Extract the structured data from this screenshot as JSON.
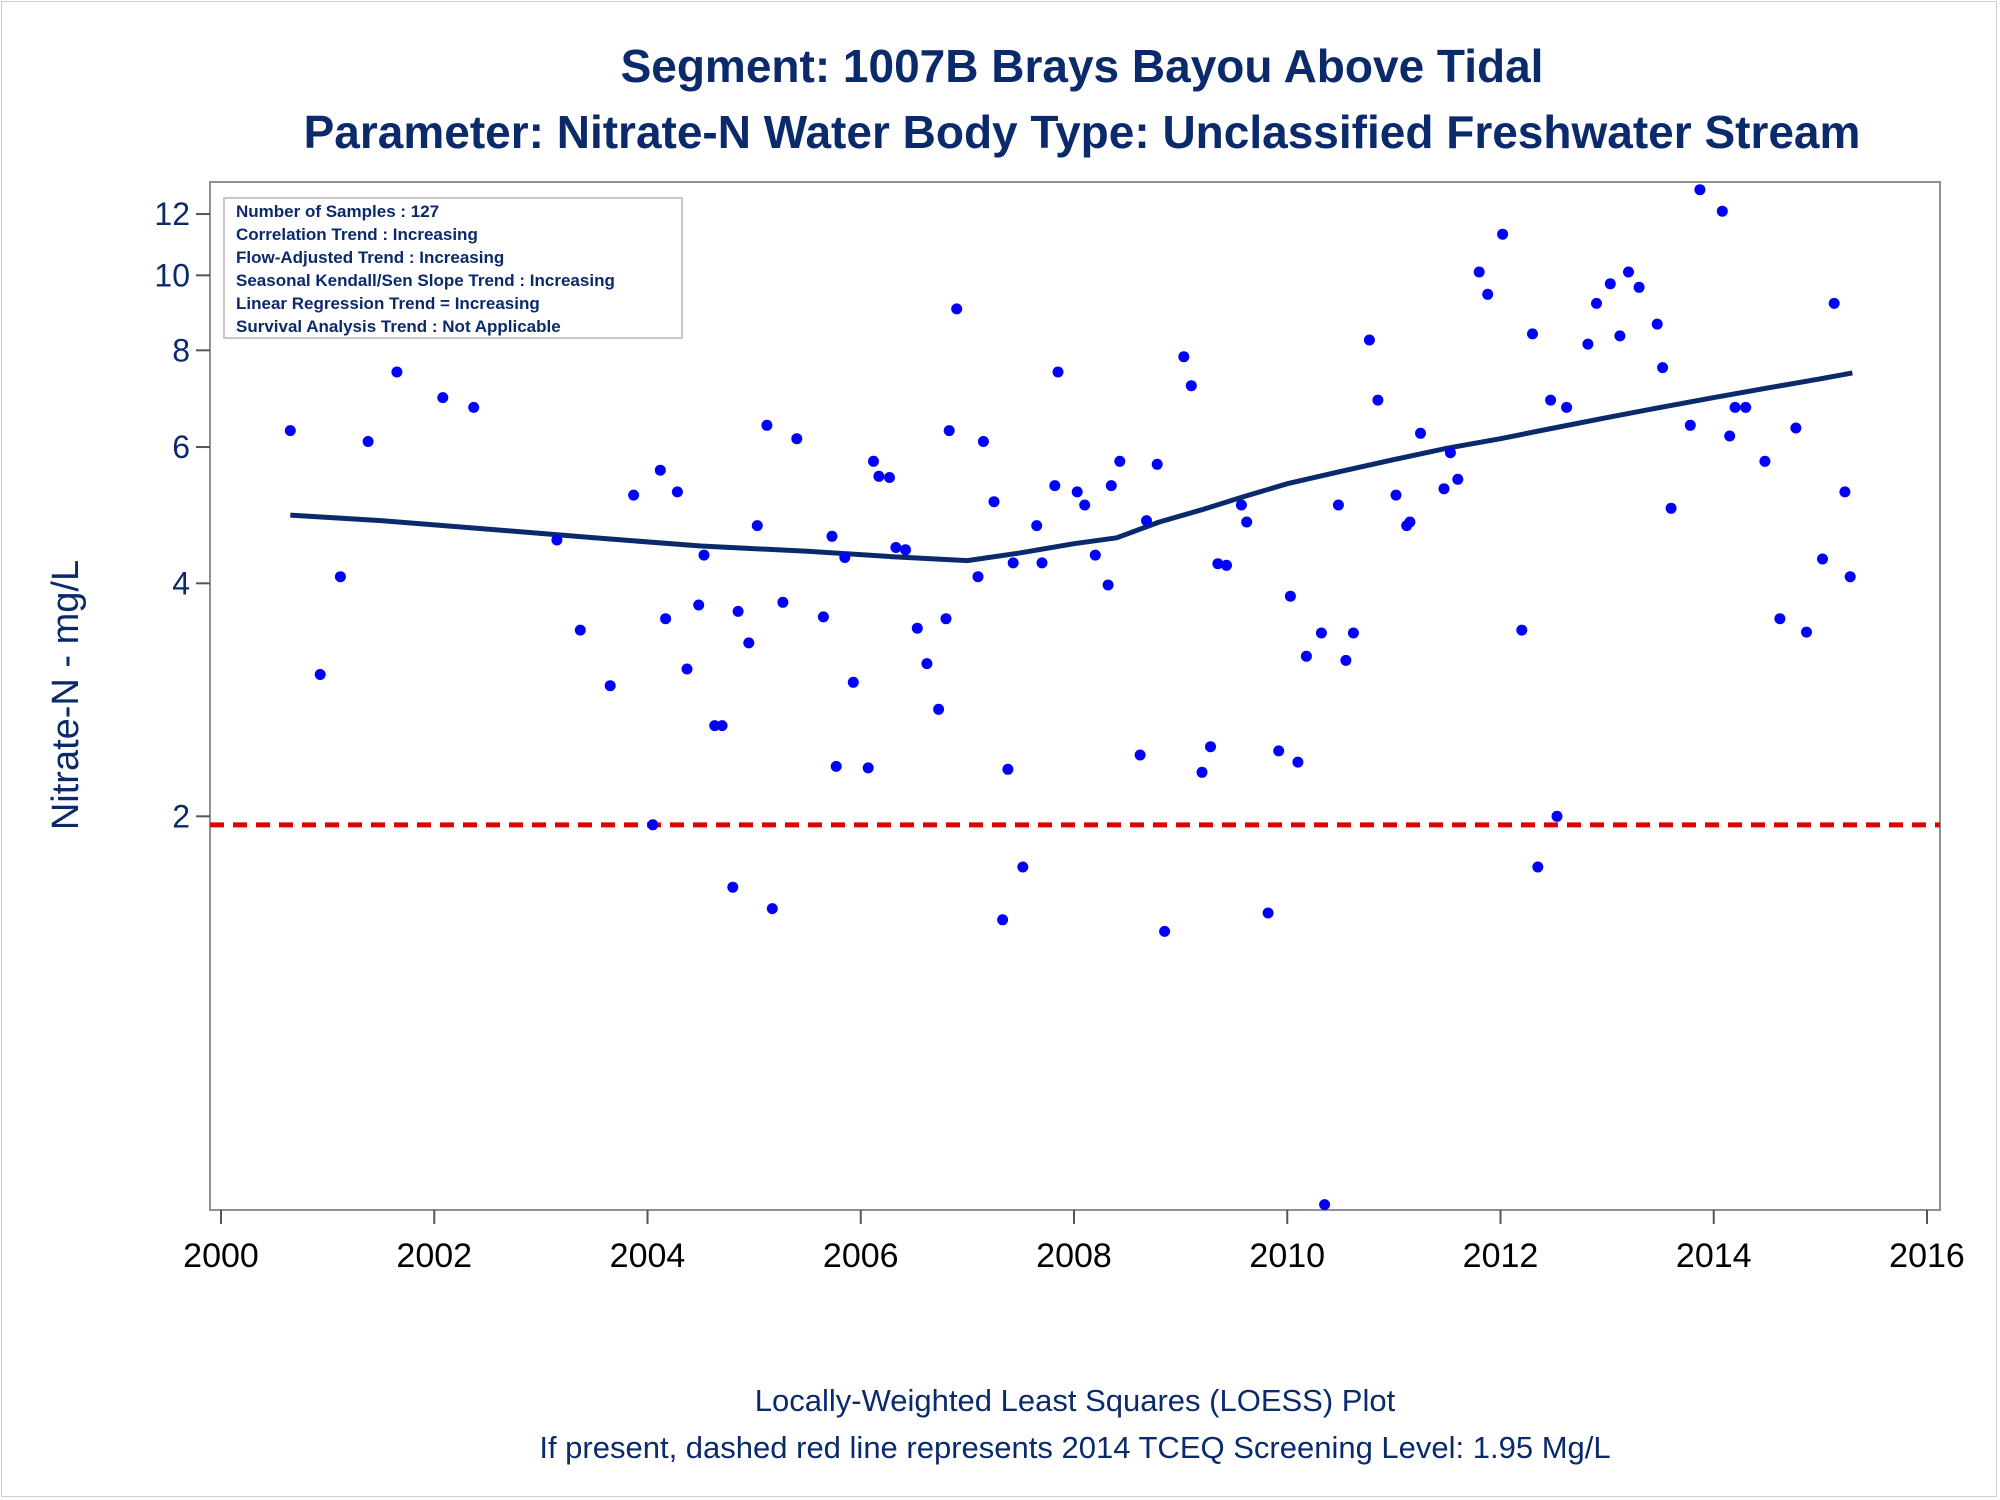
{
  "chart_data": {
    "type": "scatter",
    "title": "Segment: 1007B  Brays Bayou Above Tidal",
    "subtitle": "Parameter: Nitrate-N   Water Body Type: Unclassified Freshwater Stream",
    "xlabel": "",
    "ylabel": "Nitrate-N - mg/L",
    "yscale": "log",
    "xlim": [
      2000,
      2016
    ],
    "ylim": [
      0.62,
      13.2
    ],
    "xticks": [
      2000,
      2002,
      2004,
      2006,
      2008,
      2010,
      2012,
      2014,
      2016
    ],
    "yticks": [
      2,
      4,
      6,
      8,
      10,
      12
    ],
    "grid": false,
    "footnote1": "Locally-Weighted Least Squares (LOESS) Plot",
    "footnote2": "If present, dashed red line represents 2014 TCEQ Screening Level: 1.95 Mg/L",
    "stats_box": [
      "Number of Samples : 127",
      "Correlation Trend : Increasing",
      "Flow-Adjusted Trend : Increasing",
      "Seasonal Kendall/Sen Slope Trend : Increasing",
      "Linear Regression Trend = Increasing",
      "Survival Analysis Trend : Not Applicable"
    ],
    "screening_level": 1.95,
    "colors": {
      "points": "#0000ff",
      "loess": "#0b2a6b",
      "screening": "#e00000",
      "text": "#0b2a6b",
      "frame": "#909090"
    },
    "series": [
      {
        "kind": "points",
        "x": [
          2000.65,
          2000.93,
          2001.12,
          2001.38,
          2001.65,
          2001.85,
          2002.08,
          2002.37,
          2002.87,
          2003.15,
          2003.37,
          2003.65,
          2003.87,
          2004.05,
          2004.12,
          2004.17,
          2004.28,
          2004.37,
          2004.48,
          2004.53,
          2004.63,
          2004.7,
          2004.8,
          2004.85,
          2004.95,
          2005.03,
          2005.12,
          2005.17,
          2005.27,
          2005.4,
          2005.65,
          2005.73,
          2005.77,
          2005.85,
          2005.93,
          2006.07,
          2006.12,
          2006.17,
          2006.27,
          2006.33,
          2006.42,
          2006.53,
          2006.62,
          2006.73,
          2006.8,
          2006.83,
          2006.9,
          2007.1,
          2007.15,
          2007.25,
          2007.33,
          2007.38,
          2007.43,
          2007.52,
          2007.65,
          2007.7,
          2007.82,
          2007.85,
          2008.03,
          2008.1,
          2008.2,
          2008.32,
          2008.35,
          2008.43,
          2008.62,
          2008.68,
          2008.78,
          2008.85,
          2009.03,
          2009.1,
          2009.2,
          2009.28,
          2009.35,
          2009.43,
          2009.57,
          2009.62,
          2009.82,
          2009.92,
          2010.03,
          2010.1,
          2010.18,
          2010.32,
          2010.35,
          2010.48,
          2010.55,
          2010.62,
          2010.77,
          2010.85,
          2011.02,
          2011.12,
          2011.15,
          2011.25,
          2011.47,
          2011.53,
          2011.6,
          2011.8,
          2011.88,
          2012.02,
          2012.2,
          2012.3,
          2012.35,
          2012.47,
          2012.53,
          2012.62,
          2012.82,
          2012.9,
          2013.03,
          2013.12,
          2013.2,
          2013.3,
          2013.47,
          2013.52,
          2013.6,
          2013.78,
          2013.87,
          2014.08,
          2014.15,
          2014.2,
          2014.3,
          2014.48,
          2014.62,
          2014.77,
          2014.87,
          2015.02,
          2015.13,
          2015.23,
          2015.28
        ],
        "y": [
          6.3,
          3.05,
          4.08,
          6.1,
          7.5,
          8.5,
          6.95,
          6.75,
          8.55,
          4.55,
          3.48,
          2.95,
          5.2,
          1.95,
          5.6,
          3.6,
          5.25,
          3.1,
          3.75,
          4.35,
          2.62,
          2.62,
          1.62,
          3.68,
          3.35,
          4.75,
          6.4,
          1.52,
          3.78,
          6.15,
          3.62,
          4.6,
          2.32,
          4.32,
          2.98,
          2.31,
          5.75,
          5.5,
          5.48,
          4.45,
          4.42,
          3.5,
          3.15,
          2.75,
          3.6,
          6.3,
          9.05,
          4.08,
          6.1,
          5.1,
          1.47,
          2.3,
          4.25,
          1.72,
          4.75,
          4.25,
          5.35,
          7.5,
          5.25,
          5.05,
          4.35,
          3.98,
          5.35,
          5.75,
          2.4,
          4.82,
          5.7,
          1.42,
          7.85,
          7.2,
          2.28,
          2.46,
          4.24,
          4.22,
          5.05,
          4.8,
          1.5,
          2.43,
          3.85,
          2.35,
          3.22,
          3.45,
          0.63,
          5.05,
          3.18,
          3.45,
          8.25,
          6.9,
          5.2,
          4.75,
          4.8,
          6.25,
          5.3,
          5.9,
          5.45,
          10.1,
          9.45,
          11.3,
          3.48,
          8.4,
          1.72,
          6.9,
          2.0,
          6.75,
          8.15,
          9.2,
          9.75,
          8.35,
          10.1,
          9.65,
          8.65,
          7.6,
          5.0,
          6.4,
          12.9,
          12.1,
          6.2,
          6.75,
          6.75,
          5.75,
          3.6,
          6.35,
          3.46,
          4.3,
          9.2,
          5.25,
          4.08
        ]
      },
      {
        "kind": "loess",
        "x": [
          2000.65,
          2001.5,
          2002.5,
          2003.5,
          2004.5,
          2005.5,
          2006.3,
          2007.0,
          2007.5,
          2008.0,
          2008.4,
          2008.8,
          2009.2,
          2009.6,
          2010.0,
          2010.5,
          2011.0,
          2011.5,
          2012.0,
          2012.5,
          2013.0,
          2013.5,
          2014.0,
          2014.5,
          2015.0,
          2015.3
        ],
        "y": [
          4.9,
          4.82,
          4.7,
          4.58,
          4.47,
          4.4,
          4.33,
          4.28,
          4.38,
          4.5,
          4.58,
          4.8,
          4.98,
          5.18,
          5.38,
          5.58,
          5.78,
          5.98,
          6.15,
          6.35,
          6.55,
          6.75,
          6.95,
          7.15,
          7.35,
          7.48
        ]
      }
    ]
  }
}
